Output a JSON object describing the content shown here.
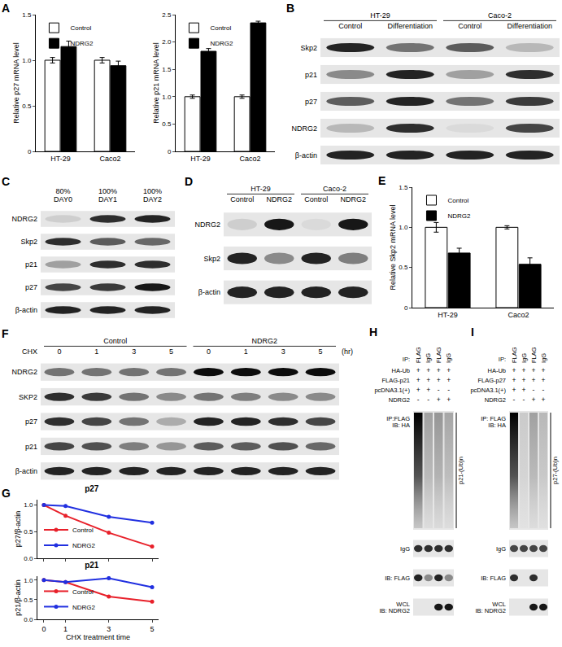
{
  "chart_data": [
    {
      "type": "bar",
      "annotations": [
        "A"
      ],
      "ylabel": "Relative p27 mRNA level",
      "categories": [
        "HT-29",
        "Caco2"
      ],
      "series": [
        {
          "name": "Control",
          "color": "#ffffff",
          "values": [
            1.0,
            1.0
          ],
          "errors": [
            0.03,
            0.03
          ]
        },
        {
          "name": "NDRG2",
          "color": "#000000",
          "values": [
            1.15,
            0.94
          ],
          "errors": [
            0.06,
            0.05
          ]
        }
      ],
      "ylim": [
        0,
        1.5
      ],
      "yticks": [
        0,
        0.5,
        {
          "value": 1,
          "label": "1.0"
        },
        1.5
      ],
      "legend": "upper left"
    },
    {
      "type": "bar",
      "ylabel": "Relative p21 mRNA level",
      "categories": [
        "HT-29",
        "Caco2"
      ],
      "series": [
        {
          "name": "Control",
          "color": "#ffffff",
          "values": [
            1.0,
            1.0
          ],
          "errors": [
            0.03,
            0.03
          ]
        },
        {
          "name": "NDRG2",
          "color": "#000000",
          "values": [
            1.83,
            2.35
          ],
          "errors": [
            0.05,
            0.03
          ]
        }
      ],
      "ylim": [
        0,
        2.5
      ],
      "yticks": [
        0,
        0.5,
        {
          "value": 1,
          "label": "1.0"
        },
        1.5,
        {
          "value": 2,
          "label": "2.0"
        },
        2.5
      ],
      "legend": "upper left"
    },
    {
      "type": "bar",
      "annotations": [
        "E"
      ],
      "ylabel": "Relative Skp2 mRNA level",
      "categories": [
        "HT-29",
        "Caco2"
      ],
      "series": [
        {
          "name": "Control",
          "color": "#ffffff",
          "values": [
            1.0,
            1.0
          ],
          "errors": [
            0.06,
            0.02
          ]
        },
        {
          "name": "NDRG2",
          "color": "#000000",
          "values": [
            0.68,
            0.54
          ],
          "errors": [
            0.06,
            0.08
          ]
        }
      ],
      "ylim": [
        0,
        1.5
      ],
      "yticks": [
        0,
        0.5,
        {
          "value": 1,
          "label": "1.0"
        },
        1.5
      ],
      "legend": "upper left"
    },
    {
      "type": "line",
      "annotations": [
        "G"
      ],
      "title": "p27",
      "ylabel": "p27/β-actin",
      "x": [
        0,
        1,
        3,
        5
      ],
      "series": [
        {
          "name": "Control",
          "color": "#e8202a",
          "marker": "circle",
          "values": [
            1.0,
            0.8,
            0.48,
            0.22
          ]
        },
        {
          "name": "NDRG2",
          "color": "#2130e0",
          "marker": "circle",
          "values": [
            1.0,
            0.98,
            0.78,
            0.67
          ]
        }
      ],
      "xlim": [
        -0.3,
        5.3
      ],
      "xticks": [
        0,
        1,
        3,
        5
      ],
      "ylim": [
        0,
        1.1
      ],
      "yticks": [
        {
          "value": 0,
          "label": "0.0"
        },
        0.5,
        {
          "value": 1,
          "label": "1.0"
        }
      ],
      "legend": "lower left",
      "tick_labels": "y"
    },
    {
      "type": "line",
      "title": "p21",
      "ylabel": "p21/β-actin",
      "xlabel": "CHX treatment time",
      "x": [
        0,
        1,
        3,
        5
      ],
      "series": [
        {
          "name": "Control",
          "color": "#e8202a",
          "marker": "circle",
          "values": [
            1.0,
            0.95,
            0.58,
            0.45
          ]
        },
        {
          "name": "NDRG2",
          "color": "#2130e0",
          "marker": "circle",
          "values": [
            1.0,
            0.95,
            1.05,
            0.82
          ]
        }
      ],
      "xlim": [
        -0.3,
        5.3
      ],
      "xticks": [
        0,
        1,
        3,
        5
      ],
      "ylim": [
        0,
        1.1
      ],
      "yticks": [
        {
          "value": 0,
          "label": "0.0"
        },
        0.5,
        {
          "value": 1,
          "label": "1.0"
        }
      ],
      "legend": "lower left"
    }
  ],
  "blots": [
    {
      "panel": "B",
      "kind": "bands",
      "groups": [
        {
          "label": "HT-29",
          "lanes": [
            "Control",
            "Differentiation"
          ]
        },
        {
          "label": "Caco-2",
          "lanes": [
            "Control",
            "Differentiation"
          ]
        }
      ],
      "rows": [
        {
          "label": "Skp2",
          "bands": [
            0.85,
            0.5,
            0.6,
            0.2
          ]
        },
        {
          "label": "p21",
          "bands": [
            0.4,
            0.85,
            0.3,
            0.8
          ]
        },
        {
          "label": "p27",
          "bands": [
            0.6,
            0.85,
            0.5,
            0.75
          ]
        },
        {
          "label": "NDRG2",
          "bands": [
            0.2,
            0.8,
            0.05,
            0.7
          ]
        },
        {
          "label": "β-actin",
          "bands": [
            0.85,
            0.85,
            0.85,
            0.85
          ]
        }
      ]
    },
    {
      "panel": "C",
      "kind": "bands",
      "groups": [
        {
          "lanes": [
            "80%\nDAY0",
            "100%\nDAY1",
            "100%\nDAY2"
          ]
        }
      ],
      "rows": [
        {
          "label": "NDRG2",
          "bands": [
            0.1,
            0.8,
            0.85
          ]
        },
        {
          "label": "Skp2",
          "bands": [
            0.8,
            0.6,
            0.55
          ]
        },
        {
          "label": "p21",
          "bands": [
            0.3,
            0.8,
            0.8
          ]
        },
        {
          "label": "p27",
          "bands": [
            0.7,
            0.75,
            0.9
          ]
        },
        {
          "label": "β-actin",
          "bands": [
            0.85,
            0.85,
            0.85
          ]
        }
      ]
    },
    {
      "panel": "D",
      "kind": "bands",
      "groups": [
        {
          "label": "HT-29",
          "lanes": [
            "Control",
            "NDRG2"
          ]
        },
        {
          "label": "Caco-2",
          "lanes": [
            "Control",
            "NDRG2"
          ]
        }
      ],
      "rows": [
        {
          "label": "NDRG2",
          "bands": [
            0.1,
            0.9,
            0.05,
            0.9
          ]
        },
        {
          "label": "Skp2",
          "bands": [
            0.85,
            0.4,
            0.85,
            0.45
          ]
        },
        {
          "label": "β-actin",
          "bands": [
            0.85,
            0.85,
            0.85,
            0.85
          ]
        }
      ]
    },
    {
      "panel": "F",
      "kind": "bands",
      "header_label": "CHX",
      "unit": "(hr)",
      "groups": [
        {
          "label": "Control",
          "lanes": [
            "0",
            "1",
            "3",
            "5"
          ]
        },
        {
          "label": "NDRG2",
          "lanes": [
            "0",
            "1",
            "3",
            "5"
          ]
        }
      ],
      "rows": [
        {
          "label": "NDRG2",
          "bands": [
            0.5,
            0.5,
            0.5,
            0.5,
            0.95,
            0.95,
            0.95,
            0.95
          ]
        },
        {
          "label": "SKP2",
          "bands": [
            0.8,
            0.75,
            0.5,
            0.4,
            0.5,
            0.45,
            0.4,
            0.4
          ]
        },
        {
          "label": "p27",
          "bands": [
            0.8,
            0.7,
            0.5,
            0.25,
            0.85,
            0.85,
            0.8,
            0.7
          ]
        },
        {
          "label": "p21",
          "bands": [
            0.7,
            0.65,
            0.45,
            0.35,
            0.6,
            0.6,
            0.65,
            0.55
          ]
        },
        {
          "label": "β-actin",
          "bands": [
            0.85,
            0.85,
            0.85,
            0.85,
            0.85,
            0.85,
            0.85,
            0.85
          ]
        }
      ]
    },
    {
      "panel": "H",
      "kind": "ip",
      "ip": {
        "label": "IP:",
        "cells": [
          "FLAG",
          "IgG",
          "FLAG",
          "IgG"
        ]
      },
      "conditions": [
        {
          "label": "HA-Ub",
          "cells": [
            "+",
            "+",
            "+",
            "+"
          ]
        },
        {
          "label": "FLAG-p21",
          "cells": [
            "+",
            "+",
            "+",
            "+"
          ]
        },
        {
          "label": "pcDNA3.1(+)",
          "cells": [
            "+",
            "+",
            "-",
            "-"
          ]
        },
        {
          "label": "NDRG2",
          "cells": [
            "-",
            "-",
            "+",
            "+"
          ]
        }
      ],
      "sections": [
        {
          "label": "IP:FLAG\nIB: HA",
          "kind": "smear",
          "bands": [
            1,
            0.3,
            0.35,
            0.28
          ],
          "side_label": "p21-(Ub)n"
        },
        {
          "label": "IgG",
          "kind": "band",
          "bands": [
            0.8,
            0.8,
            0.8,
            0.8
          ]
        },
        {
          "label": "IB: FLAG",
          "kind": "band",
          "bands": [
            0.85,
            0.4,
            0.85,
            0.4
          ]
        },
        {
          "label": "WCL\nIB: NDRG2",
          "kind": "band",
          "bands": [
            0,
            0,
            0.9,
            0.9
          ]
        }
      ]
    },
    {
      "panel": "I",
      "kind": "ip",
      "ip": {
        "label": "IP:",
        "cells": [
          "FLAG",
          "IgG",
          "FLAG",
          "IgG"
        ]
      },
      "conditions": [
        {
          "label": "HA-Ub",
          "cells": [
            "+",
            "+",
            "+",
            "+"
          ]
        },
        {
          "label": "FLAG-p27",
          "cells": [
            "+",
            "+",
            "+",
            "+"
          ]
        },
        {
          "label": "pcDNA3.1(+)",
          "cells": [
            "+",
            "+",
            "-",
            "-"
          ]
        },
        {
          "label": "NDRG2",
          "cells": [
            "-",
            "-",
            "+",
            "+"
          ]
        }
      ],
      "sections": [
        {
          "label": "IP: FLAG\nIB: HA",
          "kind": "smear",
          "bands": [
            1,
            0.12,
            0.3,
            0.2
          ],
          "side_label": "p27-(Ub)n"
        },
        {
          "label": "IgG",
          "kind": "band",
          "bands": [
            0.7,
            0.7,
            0.7,
            0.7
          ]
        },
        {
          "label": "IB: FLAG",
          "kind": "band",
          "bands": [
            0.8,
            0,
            0.8,
            0
          ]
        },
        {
          "label": "WCL\nIB: NDRG2",
          "kind": "band",
          "bands": [
            0,
            0,
            0.9,
            0.9
          ]
        }
      ]
    }
  ]
}
